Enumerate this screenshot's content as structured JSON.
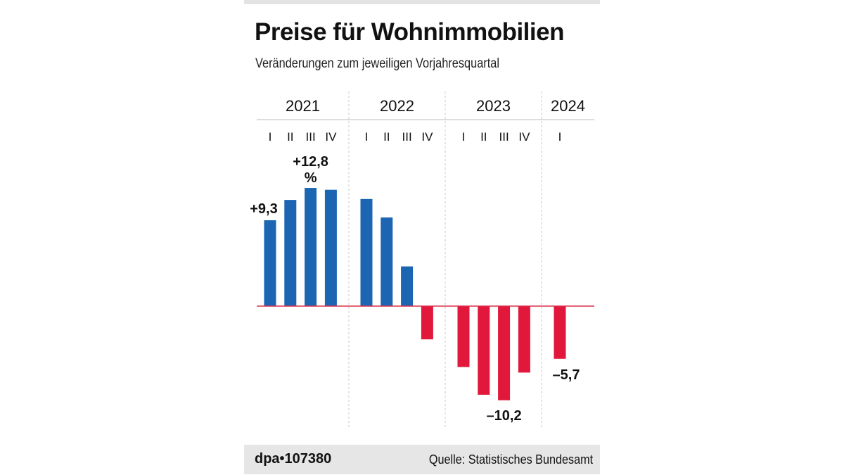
{
  "chart_data": {
    "type": "bar",
    "title": "Preise für Wohnimmobilien",
    "subtitle": "Veränderungen zum jeweiligen Vorjahresquartal",
    "years": [
      {
        "label": "2021",
        "quarters": [
          "I",
          "II",
          "III",
          "IV"
        ]
      },
      {
        "label": "2022",
        "quarters": [
          "I",
          "II",
          "III",
          "IV"
        ]
      },
      {
        "label": "2023",
        "quarters": [
          "I",
          "II",
          "III",
          "IV"
        ]
      },
      {
        "label": "2024",
        "quarters": [
          "I"
        ]
      }
    ],
    "values": [
      9.3,
      11.5,
      12.8,
      12.6,
      11.6,
      9.6,
      4.3,
      -3.6,
      -6.6,
      -9.6,
      -10.2,
      -7.2,
      -5.7
    ],
    "data_labels": [
      {
        "index": 0,
        "text": "+9,3"
      },
      {
        "index": 2,
        "text": "+12,8",
        "unit": "%"
      },
      {
        "index": 10,
        "text": "–10,2"
      },
      {
        "index": 12,
        "text": "–5,7"
      }
    ],
    "unit": "%",
    "colors": {
      "positive": "#1b65b2",
      "negative": "#e1173c",
      "zero_line": "#d9304a"
    }
  },
  "footer": {
    "credit": "dpa•107380",
    "source": "Quelle: Statistisches Bundesamt"
  }
}
